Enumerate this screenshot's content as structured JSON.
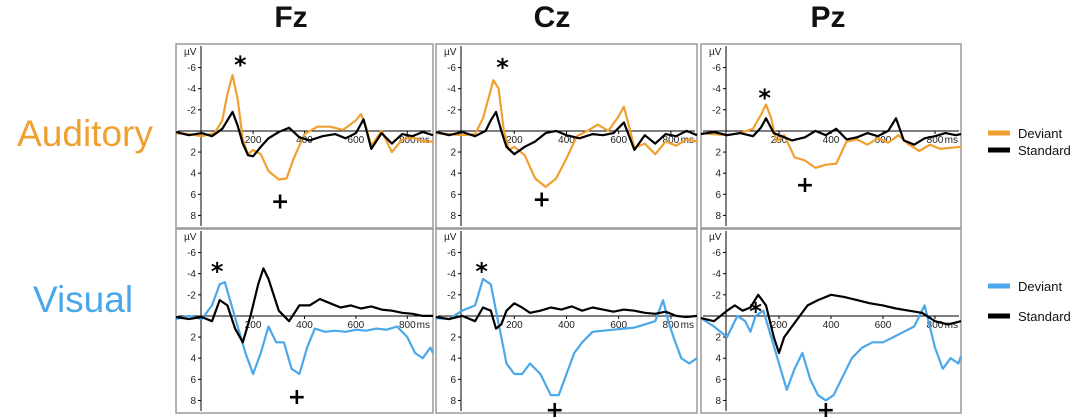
{
  "columns": [
    "Fz",
    "Cz",
    "Pz"
  ],
  "rows": [
    "Auditory",
    "Visual"
  ],
  "colors": {
    "auditory_deviant": "#f0a030",
    "visual_deviant": "#4aa8ea",
    "standard": "#000000",
    "frame": "#9a9a9a"
  },
  "axis_labels": {
    "y_unit": "µV",
    "x_unit": "ms"
  },
  "legends": [
    {
      "items": [
        {
          "label": "Deviant",
          "color": "#f0a030"
        },
        {
          "label": "Standard",
          "color": "#000000"
        }
      ]
    },
    {
      "items": [
        {
          "label": "Deviant",
          "color": "#4aa8ea"
        },
        {
          "label": "Standard",
          "color": "#000000"
        }
      ]
    }
  ],
  "chart_data": [
    {
      "type": "line",
      "row": "Auditory",
      "electrode": "Fz",
      "xlim": [
        -100,
        900
      ],
      "ylim": [
        9,
        -7
      ],
      "y_inverted": true,
      "x_ticks": [
        200,
        400,
        600,
        800
      ],
      "y_ticks": [
        -6,
        -4,
        -2,
        2,
        4,
        6,
        8
      ],
      "series": [
        {
          "name": "Deviant",
          "x": [
            -100,
            -50,
            0,
            50,
            80,
            100,
            120,
            140,
            160,
            180,
            200,
            230,
            260,
            300,
            330,
            360,
            400,
            450,
            500,
            550,
            600,
            620,
            640,
            660,
            700,
            740,
            780,
            820,
            860,
            900
          ],
          "y": [
            0.2,
            0.3,
            0.5,
            0.2,
            -1,
            -3.5,
            -5.3,
            -3,
            0.8,
            2.2,
            1.8,
            2.2,
            3.8,
            4.6,
            4.5,
            2.5,
            0.3,
            -0.4,
            -0.4,
            -0.1,
            -1,
            -1.6,
            -0.3,
            1.4,
            0,
            2,
            0.8,
            0.6,
            1,
            1
          ]
        },
        {
          "name": "Standard",
          "x": [
            -100,
            -50,
            0,
            40,
            80,
            100,
            120,
            140,
            160,
            180,
            200,
            230,
            260,
            300,
            340,
            380,
            420,
            470,
            520,
            560,
            600,
            630,
            660,
            700,
            740,
            780,
            820,
            860,
            900
          ],
          "y": [
            0.1,
            0.4,
            0.2,
            0.5,
            -0.2,
            -1,
            -1.8,
            -0.5,
            1.2,
            2.3,
            2.4,
            1.5,
            0.7,
            0.1,
            -0.3,
            0.6,
            0.9,
            0.5,
            0.3,
            0.7,
            0.2,
            -1.1,
            1.7,
            0.2,
            1.2,
            0.3,
            0.5,
            0.1,
            0.4
          ]
        }
      ],
      "annotations": [
        {
          "symbol": "*",
          "x": 150,
          "y": -6.6
        },
        {
          "symbol": "+",
          "x": 305,
          "y": 6.6
        }
      ]
    },
    {
      "type": "line",
      "row": "Auditory",
      "electrode": "Cz",
      "xlim": [
        -100,
        900
      ],
      "ylim": [
        9,
        -7
      ],
      "y_inverted": true,
      "x_ticks": [
        200,
        400,
        600,
        800
      ],
      "y_ticks": [
        -6,
        -4,
        -2,
        2,
        4,
        6,
        8
      ],
      "series": [
        {
          "name": "Deviant",
          "x": [
            -100,
            -50,
            0,
            50,
            80,
            100,
            120,
            140,
            160,
            180,
            200,
            240,
            280,
            320,
            360,
            400,
            440,
            480,
            520,
            560,
            600,
            620,
            640,
            660,
            700,
            740,
            780,
            820,
            860,
            900
          ],
          "y": [
            0.2,
            0.3,
            0.4,
            0.3,
            -1.2,
            -3,
            -4.8,
            -4,
            0,
            1.8,
            1.5,
            2.3,
            4.5,
            5.3,
            4.5,
            2.6,
            0.5,
            0,
            -0.6,
            0,
            -1.4,
            -2.3,
            -0.4,
            1.6,
            1.2,
            2.2,
            1,
            1.4,
            0.8,
            1
          ]
        },
        {
          "name": "Standard",
          "x": [
            -100,
            -50,
            0,
            50,
            90,
            110,
            130,
            150,
            170,
            200,
            240,
            280,
            320,
            360,
            400,
            450,
            500,
            540,
            580,
            620,
            660,
            700,
            740,
            780,
            820,
            860,
            900
          ],
          "y": [
            0.1,
            0.4,
            0.1,
            0.5,
            0,
            -1,
            -1.8,
            0,
            1.5,
            2.2,
            1.5,
            1,
            0.2,
            0,
            0.4,
            0.7,
            0.3,
            0.4,
            0.2,
            -0.8,
            1.8,
            0.4,
            1.2,
            0.3,
            0.5,
            0,
            0.4
          ]
        }
      ],
      "annotations": [
        {
          "symbol": "*",
          "x": 155,
          "y": -6.4
        },
        {
          "symbol": "+",
          "x": 305,
          "y": 6.4
        }
      ]
    },
    {
      "type": "line",
      "row": "Auditory",
      "electrode": "Pz",
      "xlim": [
        -100,
        900
      ],
      "ylim": [
        9,
        -7
      ],
      "y_inverted": true,
      "x_ticks": [
        200,
        400,
        600,
        800
      ],
      "y_ticks": [
        -6,
        -4,
        -2,
        2,
        4,
        6,
        8
      ],
      "series": [
        {
          "name": "Deviant",
          "x": [
            -100,
            -50,
            0,
            50,
            100,
            130,
            150,
            170,
            190,
            220,
            260,
            300,
            340,
            380,
            420,
            460,
            500,
            540,
            580,
            620,
            660,
            700,
            740,
            780,
            820,
            860,
            900
          ],
          "y": [
            0.2,
            0.3,
            0.4,
            0.2,
            -0.2,
            -1.5,
            -2.5,
            -1.2,
            1,
            0.4,
            2.5,
            2.8,
            3.5,
            3.2,
            3.1,
            1,
            0.8,
            1.3,
            0.7,
            1.1,
            0.4,
            1.3,
            1.9,
            1.3,
            1.7,
            1.6,
            1.5
          ]
        },
        {
          "name": "Standard",
          "x": [
            -100,
            -50,
            0,
            50,
            100,
            130,
            150,
            180,
            210,
            250,
            300,
            340,
            380,
            420,
            460,
            500,
            540,
            580,
            620,
            650,
            680,
            720,
            760,
            800,
            840,
            880,
            900
          ],
          "y": [
            0.3,
            0.1,
            0.4,
            0.2,
            0.5,
            -0.3,
            -1.2,
            0.2,
            0.5,
            0.9,
            0.6,
            0,
            0.4,
            -0.2,
            0.8,
            0.6,
            0.2,
            0.5,
            0,
            -1.2,
            0.9,
            1.3,
            0.7,
            0.5,
            0.2,
            0.4,
            0.3
          ]
        }
      ],
      "annotations": [
        {
          "symbol": "*",
          "x": 145,
          "y": -3.5
        },
        {
          "symbol": "+",
          "x": 300,
          "y": 5
        }
      ]
    },
    {
      "type": "line",
      "row": "Visual",
      "electrode": "Fz",
      "xlim": [
        -100,
        900
      ],
      "ylim": [
        9,
        -7
      ],
      "y_inverted": true,
      "x_ticks": [
        200,
        400,
        600,
        800
      ],
      "y_ticks": [
        -6,
        -4,
        -2,
        2,
        4,
        6,
        8
      ],
      "series": [
        {
          "name": "Deviant",
          "x": [
            -100,
            -50,
            0,
            40,
            70,
            90,
            110,
            140,
            170,
            200,
            230,
            260,
            290,
            320,
            350,
            380,
            410,
            440,
            480,
            520,
            560,
            600,
            640,
            680,
            720,
            760,
            800,
            830,
            860,
            890,
            900
          ],
          "y": [
            0.3,
            0,
            0.3,
            -1,
            -3,
            -3.2,
            -1.5,
            1,
            3.5,
            5.5,
            3.5,
            1,
            2.5,
            2.5,
            5,
            5.5,
            3,
            1.2,
            1.5,
            1.4,
            1.5,
            1.3,
            1.4,
            1.2,
            1.3,
            1,
            2,
            3.5,
            4,
            3,
            3.5
          ]
        },
        {
          "name": "Standard",
          "x": [
            -100,
            -50,
            0,
            40,
            70,
            100,
            130,
            160,
            190,
            220,
            240,
            260,
            300,
            340,
            380,
            420,
            460,
            500,
            540,
            580,
            620,
            660,
            700,
            740,
            780,
            820,
            860,
            900
          ],
          "y": [
            0.1,
            0.3,
            0.1,
            0.5,
            -1.5,
            -1,
            1.2,
            2.5,
            0,
            -3,
            -4.5,
            -3.5,
            -0.5,
            0.5,
            -1,
            -1,
            -1.6,
            -1.2,
            -0.8,
            -1,
            -0.7,
            -0.9,
            -0.6,
            -0.5,
            -0.3,
            -0.2,
            0,
            0
          ]
        }
      ],
      "annotations": [
        {
          "symbol": "*",
          "x": 60,
          "y": -4.6
        },
        {
          "symbol": "+",
          "x": 370,
          "y": 7.6
        }
      ]
    },
    {
      "type": "line",
      "row": "Visual",
      "electrode": "Cz",
      "xlim": [
        -100,
        900
      ],
      "ylim": [
        9,
        -7
      ],
      "y_inverted": true,
      "x_ticks": [
        200,
        400,
        600,
        800
      ],
      "y_ticks": [
        -6,
        -4,
        -2,
        2,
        4,
        6,
        8
      ],
      "series": [
        {
          "name": "Deviant",
          "x": [
            -100,
            -50,
            0,
            50,
            80,
            110,
            130,
            150,
            170,
            200,
            230,
            260,
            300,
            340,
            370,
            400,
            430,
            460,
            500,
            540,
            580,
            620,
            660,
            700,
            740,
            770,
            790,
            810,
            840,
            870,
            900
          ],
          "y": [
            0.2,
            0.3,
            -0.5,
            -1,
            -3.5,
            -3,
            -0.5,
            2,
            4.5,
            5.5,
            5.5,
            4.5,
            5.5,
            7.5,
            7.5,
            5.5,
            3.5,
            2.5,
            1.5,
            1.4,
            1.3,
            1.2,
            1.1,
            0.8,
            0.5,
            -1.5,
            0.5,
            2,
            4,
            4.5,
            4
          ]
        },
        {
          "name": "Standard",
          "x": [
            -100,
            -50,
            0,
            50,
            80,
            110,
            130,
            150,
            170,
            200,
            230,
            260,
            300,
            340,
            380,
            420,
            460,
            500,
            540,
            580,
            620,
            660,
            700,
            740,
            780,
            820,
            860,
            900
          ],
          "y": [
            0.1,
            0.3,
            0,
            0.5,
            -0.8,
            -0.5,
            1.2,
            0.8,
            -0.5,
            -1.2,
            -0.8,
            -0.3,
            -0.5,
            -0.8,
            -0.6,
            -0.9,
            -0.5,
            -0.8,
            -0.6,
            -0.4,
            -0.6,
            -0.5,
            -0.3,
            -0.2,
            -0.4,
            0,
            0.1,
            0
          ]
        }
      ],
      "annotations": [
        {
          "symbol": "*",
          "x": 75,
          "y": -4.6
        },
        {
          "symbol": "+",
          "x": 355,
          "y": 8.8
        }
      ]
    },
    {
      "type": "line",
      "row": "Visual",
      "electrode": "Pz",
      "xlim": [
        -100,
        900
      ],
      "ylim": [
        9,
        -7
      ],
      "y_inverted": true,
      "x_ticks": [
        200,
        400,
        600,
        800
      ],
      "y_ticks": [
        -6,
        -4,
        -2,
        2,
        4,
        6,
        8
      ],
      "series": [
        {
          "name": "Deviant",
          "x": [
            -100,
            -50,
            0,
            40,
            70,
            90,
            110,
            140,
            170,
            200,
            230,
            260,
            290,
            320,
            350,
            380,
            410,
            440,
            480,
            520,
            560,
            600,
            640,
            680,
            720,
            760,
            800,
            830,
            860,
            890,
            900
          ],
          "y": [
            0.2,
            1,
            2,
            0,
            0.5,
            1.5,
            0,
            -0.5,
            2,
            4.5,
            7,
            5,
            3.5,
            6,
            7.5,
            8,
            7.5,
            6,
            4,
            3,
            2.5,
            2.5,
            2,
            1.5,
            1,
            -1,
            3,
            5,
            4,
            4.5,
            3.8
          ]
        },
        {
          "name": "Standard",
          "x": [
            -100,
            -50,
            0,
            30,
            60,
            90,
            120,
            150,
            180,
            200,
            220,
            250,
            280,
            310,
            350,
            400,
            450,
            500,
            550,
            600,
            650,
            700,
            750,
            800,
            850,
            900
          ],
          "y": [
            0.2,
            0.5,
            -0.5,
            -1,
            -0.5,
            -0.8,
            -2,
            -1,
            2,
            3.5,
            2,
            1,
            0,
            -1,
            -1.5,
            -2,
            -1.8,
            -1.5,
            -1.2,
            -1,
            -0.7,
            -0.5,
            -0.3,
            0.5,
            0.8,
            0.5
          ]
        }
      ],
      "annotations": [
        {
          "symbol": "*",
          "x": 110,
          "y": -0.8
        },
        {
          "symbol": "+",
          "x": 380,
          "y": 8.8
        }
      ]
    }
  ]
}
